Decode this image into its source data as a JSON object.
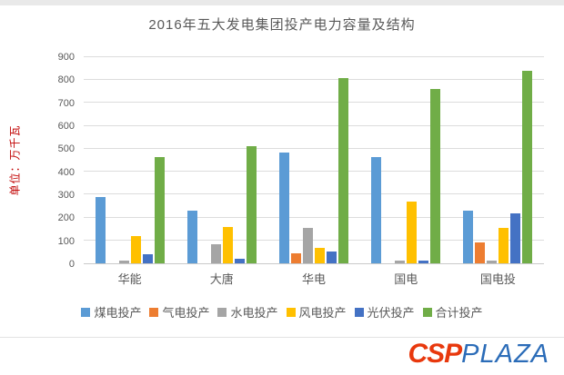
{
  "chart_data": {
    "type": "bar",
    "title": "2016年五大发电集团投产电力容量及结构",
    "ylabel": "单位：万千瓦",
    "xlabel": "",
    "categories": [
      "华能",
      "大唐",
      "华电",
      "国电",
      "国电投"
    ],
    "series": [
      {
        "name": "煤电投产",
        "color": "#5B9BD5",
        "values": [
          290,
          230,
          485,
          465,
          230
        ]
      },
      {
        "name": "气电投产",
        "color": "#ED7D31",
        "values": [
          0,
          0,
          45,
          0,
          90
        ]
      },
      {
        "name": "水电投产",
        "color": "#A5A5A5",
        "values": [
          10,
          85,
          155,
          10,
          10
        ]
      },
      {
        "name": "风电投产",
        "color": "#FFC000",
        "values": [
          120,
          160,
          68,
          270,
          155
        ]
      },
      {
        "name": "光伏投产",
        "color": "#4472C4",
        "values": [
          40,
          20,
          50,
          10,
          220
        ]
      },
      {
        "name": "合计投产",
        "color": "#70AD47",
        "values": [
          465,
          510,
          810,
          760,
          840
        ]
      }
    ],
    "ylim": [
      0,
      900
    ],
    "ytick_step": 100,
    "grid": true,
    "legend_position": "bottom"
  },
  "colors": {
    "axis_text": "#595959",
    "y_axis_title": "#c00000",
    "gridline": "#dcdcdc"
  },
  "logo": {
    "csp": "CSP",
    "plaza": "PLAZA",
    "csp_color": "#e8380d",
    "plaza_color": "#2b6cb8"
  }
}
